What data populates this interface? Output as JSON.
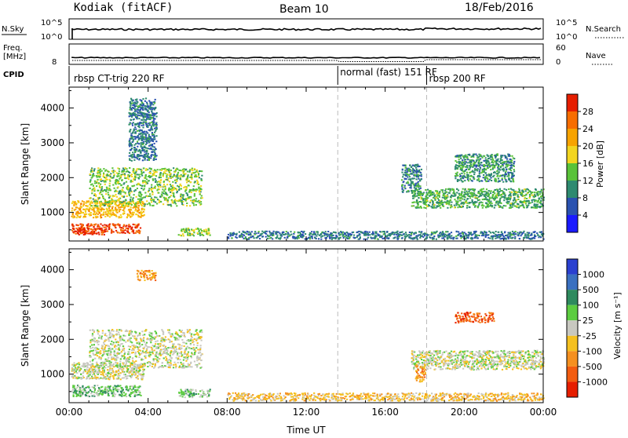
{
  "header": {
    "station": "Kodiak (fitACF)",
    "beam": "Beam 10",
    "date": "18/Feb/2016"
  },
  "top_panels": {
    "nsky_label": "N.Sky",
    "nsky_tick_hi": "10^5",
    "nsky_tick_lo": "10^0",
    "nsearch_label": "N.Search",
    "nsearch_tick_hi": "10^5",
    "nsearch_tick_lo": "10^0",
    "freq_label_line1": "Freq.",
    "freq_label_line2": "[MHz]",
    "freq_tick": "8",
    "nave_label": "Nave",
    "nave_tick_hi": "60",
    "nave_tick_lo": "0",
    "cpid_label": "CPID",
    "cpid_segments": [
      {
        "label": "rbsp CT-trig 220 RF",
        "start_hour": 0.0
      },
      {
        "label": "normal (fast) 151 RF",
        "start_hour": 13.6
      },
      {
        "label": "rbsp 200 RF",
        "start_hour": 18.1
      }
    ]
  },
  "chart_data": [
    {
      "type": "heatmap",
      "name": "power-panel",
      "ylabel": "Slant Range [km]",
      "xlabel": "",
      "ylim": [
        180,
        4600
      ],
      "xlim_hours": [
        0,
        24
      ],
      "yticks": [
        "1000",
        "2000",
        "3000",
        "4000"
      ],
      "ytick_values": [
        1000,
        2000,
        3000,
        4000
      ],
      "colorbar": {
        "label": "Power [dB]",
        "tick_labels": [
          "4",
          "8",
          "12",
          "16",
          "20",
          "24",
          "28"
        ],
        "tick_values": [
          4,
          8,
          12,
          16,
          20,
          24,
          28
        ],
        "range": [
          0,
          32
        ],
        "colors": [
          "#1a1aff",
          "#2a52b0",
          "#2e8a70",
          "#59c239",
          "#f2d520",
          "#f7a300",
          "#f76d00",
          "#e61e00"
        ]
      },
      "regions": [
        {
          "x0": 0.1,
          "x1": 3.6,
          "y0": 420,
          "y1": 690,
          "level": 28
        },
        {
          "x0": 0.3,
          "x1": 1.8,
          "y0": 380,
          "y1": 560,
          "level": 30
        },
        {
          "x0": 0.1,
          "x1": 3.8,
          "y0": 870,
          "y1": 1350,
          "level": 20
        },
        {
          "x0": 1.0,
          "x1": 6.7,
          "y0": 1200,
          "y1": 2300,
          "level": 14
        },
        {
          "x0": 3.0,
          "x1": 4.4,
          "y0": 2500,
          "y1": 4300,
          "level": 8
        },
        {
          "x0": 5.5,
          "x1": 7.1,
          "y0": 350,
          "y1": 580,
          "level": 15
        },
        {
          "x0": 17.3,
          "x1": 24.0,
          "y0": 1150,
          "y1": 1700,
          "level": 12
        },
        {
          "x0": 16.8,
          "x1": 17.8,
          "y0": 1600,
          "y1": 2400,
          "level": 9
        },
        {
          "x0": 19.5,
          "x1": 22.5,
          "y0": 1900,
          "y1": 2700,
          "level": 10
        },
        {
          "x0": 8.0,
          "x1": 24.0,
          "y0": 250,
          "y1": 480,
          "level": 8
        }
      ]
    },
    {
      "type": "heatmap",
      "name": "velocity-panel",
      "ylabel": "Slant Range [km]",
      "xlabel": "Time UT",
      "ylim": [
        180,
        4600
      ],
      "xlim_hours": [
        0,
        24
      ],
      "yticks": [
        "1000",
        "2000",
        "3000",
        "4000"
      ],
      "ytick_values": [
        1000,
        2000,
        3000,
        4000
      ],
      "xticks": [
        "00:00",
        "04:00",
        "08:00",
        "12:00",
        "16:00",
        "20:00",
        "00:00"
      ],
      "xtick_values": [
        0,
        4,
        8,
        12,
        16,
        20,
        24
      ],
      "colorbar": {
        "label": "Velocity [m s⁻¹]",
        "tick_labels": [
          "1000",
          "500",
          "100",
          "25",
          "-25",
          "-100",
          "-500",
          "-1000"
        ],
        "colors": [
          "#2a40d0",
          "#3a70c0",
          "#2e8a5e",
          "#5ccc40",
          "#c8c8c0",
          "#f5c020",
          "#f59020",
          "#f25c10",
          "#e61e00"
        ]
      },
      "regions": [
        {
          "x0": 0.1,
          "x1": 3.6,
          "y0": 380,
          "y1": 700,
          "level": 3
        },
        {
          "x0": 0.1,
          "x1": 3.8,
          "y0": 870,
          "y1": 1350,
          "level": 4
        },
        {
          "x0": 1.0,
          "x1": 6.7,
          "y0": 1200,
          "y1": 2300,
          "level": 4
        },
        {
          "x0": 3.4,
          "x1": 4.4,
          "y0": 3700,
          "y1": 4000,
          "level": 6
        },
        {
          "x0": 5.5,
          "x1": 7.1,
          "y0": 350,
          "y1": 580,
          "level": 3
        },
        {
          "x0": 17.3,
          "x1": 24.0,
          "y0": 1150,
          "y1": 1700,
          "level": 4
        },
        {
          "x0": 17.5,
          "x1": 18.0,
          "y0": 800,
          "y1": 1300,
          "level": 6
        },
        {
          "x0": 19.5,
          "x1": 21.5,
          "y0": 2500,
          "y1": 2800,
          "level": 7
        },
        {
          "x0": 8.0,
          "x1": 24.0,
          "y0": 250,
          "y1": 480,
          "level": 5
        }
      ]
    }
  ]
}
